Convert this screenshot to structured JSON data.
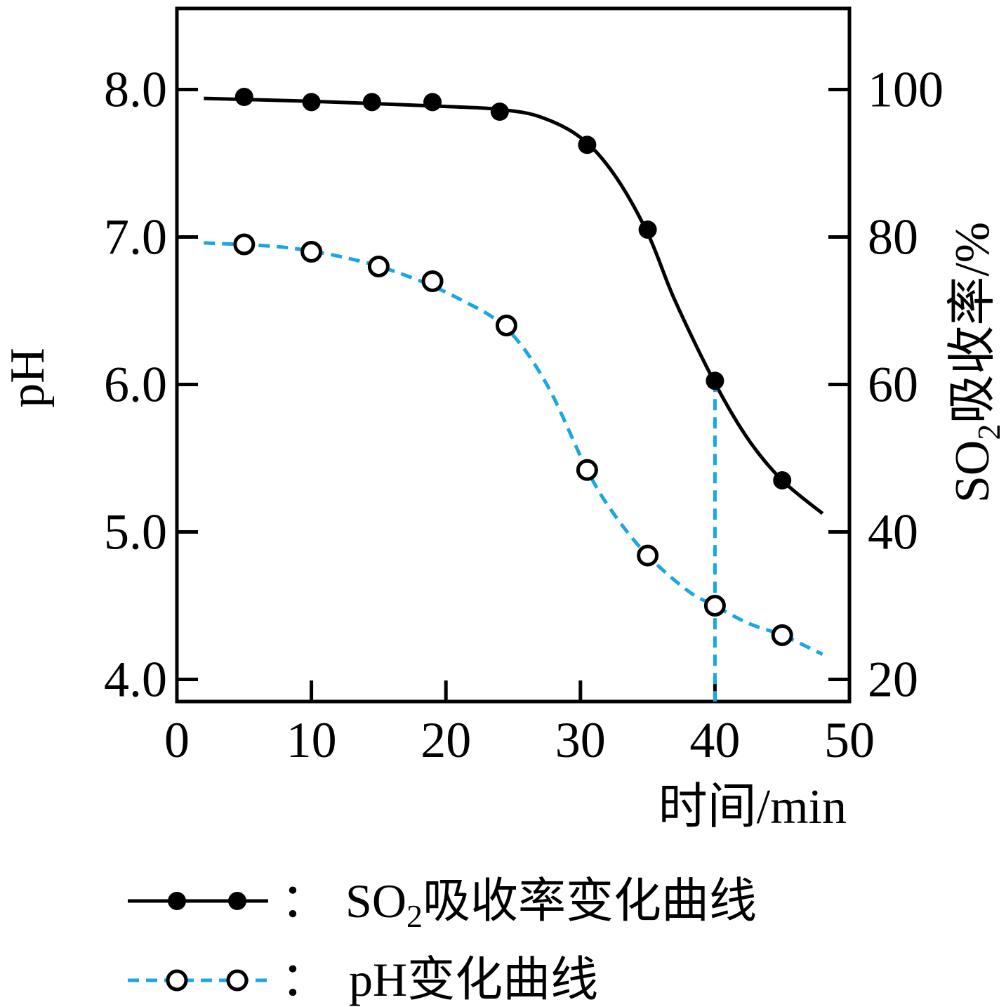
{
  "colors": {
    "so2_line": "#000000",
    "ph_line": "#1aa7e0",
    "axes": "#000000",
    "background": "#ffffff"
  },
  "chart_data": {
    "type": "line",
    "x_axis": {
      "label": "时间/min",
      "range": [
        0,
        50
      ],
      "ticks": [
        0,
        10,
        20,
        30,
        40,
        50
      ],
      "tick_labels": [
        "0",
        "10",
        "20",
        "30",
        "40",
        "50"
      ]
    },
    "y_left": {
      "label": "pH",
      "range": [
        3.85,
        8.55
      ],
      "ticks": [
        4.0,
        5.0,
        6.0,
        7.0,
        8.0
      ],
      "tick_labels": [
        "4.0",
        "5.0",
        "6.0",
        "7.0",
        "8.0"
      ]
    },
    "y_right": {
      "label_main": "SO",
      "label_sub": "2",
      "label_rest": "吸收率/%",
      "range": [
        17,
        111
      ],
      "ticks": [
        20,
        40,
        60,
        80,
        100
      ],
      "tick_labels": [
        "20",
        "40",
        "60",
        "80",
        "100"
      ]
    },
    "series": [
      {
        "axis": "right",
        "style": "solid",
        "marker": "filled-circle",
        "points": [
          {
            "x": 5,
            "y": 99.0
          },
          {
            "x": 10,
            "y": 98.3
          },
          {
            "x": 14.5,
            "y": 98.3
          },
          {
            "x": 19,
            "y": 98.3
          },
          {
            "x": 24,
            "y": 97.0
          },
          {
            "x": 30.5,
            "y": 92.5
          },
          {
            "x": 35,
            "y": 81.0
          },
          {
            "x": 40,
            "y": 60.5
          },
          {
            "x": 45,
            "y": 47.0
          }
        ],
        "curve": [
          {
            "x": 2,
            "y": 98.8
          },
          {
            "x": 10,
            "y": 98.4
          },
          {
            "x": 20,
            "y": 97.7
          },
          {
            "x": 24,
            "y": 97.3
          },
          {
            "x": 27,
            "y": 96.3
          },
          {
            "x": 30,
            "y": 93.5
          },
          {
            "x": 32.5,
            "y": 88.5
          },
          {
            "x": 35,
            "y": 80.5
          },
          {
            "x": 37,
            "y": 71.5
          },
          {
            "x": 40,
            "y": 60.2
          },
          {
            "x": 42.5,
            "y": 52.5
          },
          {
            "x": 45,
            "y": 47.0
          },
          {
            "x": 48,
            "y": 42.5
          }
        ]
      },
      {
        "axis": "left",
        "style": "dashed",
        "marker": "open-circle",
        "points": [
          {
            "x": 5,
            "y": 6.95
          },
          {
            "x": 10,
            "y": 6.9
          },
          {
            "x": 15,
            "y": 6.8
          },
          {
            "x": 19,
            "y": 6.7
          },
          {
            "x": 24.5,
            "y": 6.4
          },
          {
            "x": 30.5,
            "y": 5.42
          },
          {
            "x": 35,
            "y": 4.84
          },
          {
            "x": 40,
            "y": 4.5
          },
          {
            "x": 45,
            "y": 4.3
          }
        ],
        "curve": [
          {
            "x": 2,
            "y": 6.96
          },
          {
            "x": 8,
            "y": 6.93
          },
          {
            "x": 13,
            "y": 6.85
          },
          {
            "x": 17,
            "y": 6.74
          },
          {
            "x": 21,
            "y": 6.58
          },
          {
            "x": 24.5,
            "y": 6.38
          },
          {
            "x": 27.5,
            "y": 6.0
          },
          {
            "x": 30.5,
            "y": 5.42
          },
          {
            "x": 32.5,
            "y": 5.12
          },
          {
            "x": 35,
            "y": 4.84
          },
          {
            "x": 38,
            "y": 4.6
          },
          {
            "x": 40,
            "y": 4.5
          },
          {
            "x": 42.5,
            "y": 4.38
          },
          {
            "x": 45,
            "y": 4.3
          },
          {
            "x": 48,
            "y": 4.17
          }
        ]
      }
    ],
    "reference_line": {
      "x": 40,
      "from_y_right": 60.5,
      "to": "x-axis",
      "style": "dashed"
    },
    "legend": {
      "placement": "bottom",
      "items": [
        {
          "series_index": 0,
          "separator": "：",
          "text_main": "SO",
          "text_sub": "2",
          "text_rest": "吸收率变化曲线"
        },
        {
          "series_index": 1,
          "separator": "：",
          "text_main": "pH变化曲线",
          "text_sub": "",
          "text_rest": ""
        }
      ]
    }
  }
}
